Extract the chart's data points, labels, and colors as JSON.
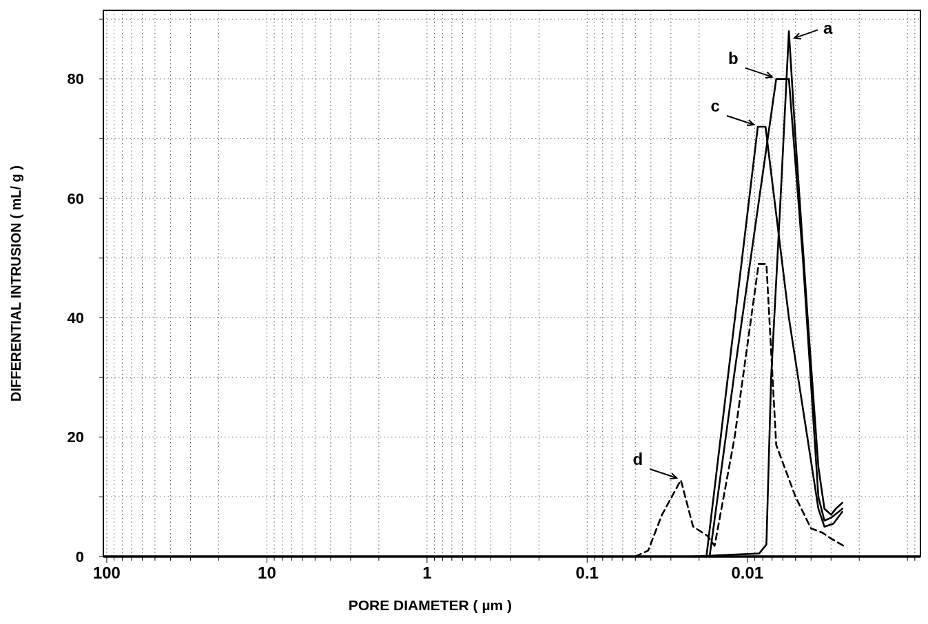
{
  "chart_data": {
    "type": "line",
    "xlabel": "PORE DIAMETER ( µm )",
    "ylabel": "DIFFERENTIAL INTRUSION ( mL/ g )",
    "log": "x",
    "grid": true,
    "marker": "none",
    "xlim": [
      105,
      0.00083
    ],
    "xticks": [
      100,
      {
        "value": 90,
        "label": null
      },
      {
        "value": 80,
        "label": null
      },
      {
        "value": 70,
        "label": null
      },
      {
        "value": 60,
        "label": null
      },
      {
        "value": 50,
        "label": null
      },
      {
        "value": 40,
        "label": null
      },
      {
        "value": 30,
        "label": null
      },
      {
        "value": 20,
        "label": null
      },
      10,
      {
        "value": 9,
        "label": null
      },
      {
        "value": 8,
        "label": null
      },
      {
        "value": 7,
        "label": null
      },
      {
        "value": 6,
        "label": null
      },
      {
        "value": 5,
        "label": null
      },
      {
        "value": 4,
        "label": null
      },
      {
        "value": 3,
        "label": null
      },
      {
        "value": 2,
        "label": null
      },
      1,
      {
        "value": 0.9,
        "label": null
      },
      {
        "value": 0.8,
        "label": null
      },
      {
        "value": 0.7,
        "label": null
      },
      {
        "value": 0.6,
        "label": null
      },
      {
        "value": 0.5,
        "label": null
      },
      {
        "value": 0.4,
        "label": null
      },
      {
        "value": 0.3,
        "label": null
      },
      {
        "value": 0.2,
        "label": null
      },
      0.1,
      {
        "value": 0.09,
        "label": null
      },
      {
        "value": 0.08,
        "label": null
      },
      {
        "value": 0.07,
        "label": null
      },
      {
        "value": 0.06,
        "label": null
      },
      {
        "value": 0.05,
        "label": null
      },
      {
        "value": 0.04,
        "label": null
      },
      {
        "value": 0.03,
        "label": null
      },
      {
        "value": 0.02,
        "label": null
      },
      0.01,
      {
        "value": 0.009,
        "label": null
      },
      {
        "value": 0.008,
        "label": null
      },
      {
        "value": 0.007,
        "label": null
      },
      {
        "value": 0.006,
        "label": null
      },
      {
        "value": 0.005,
        "label": null
      },
      {
        "value": 0.004,
        "label": null
      },
      {
        "value": 0.003,
        "label": null
      },
      {
        "value": 0.002,
        "label": null
      },
      {
        "value": 0.001,
        "label": null
      },
      {
        "value": 0.0009,
        "label": null
      }
    ],
    "ylim": [
      0,
      91.5
    ],
    "yticks": [
      0,
      {
        "value": 10,
        "label": null
      },
      20,
      {
        "value": 30,
        "label": null
      },
      40,
      {
        "value": 50,
        "label": null
      },
      60,
      {
        "value": 70,
        "label": null
      },
      80,
      {
        "value": 90,
        "label": null
      }
    ],
    "series": [
      {
        "color": "#000000",
        "x": [
          0.0218,
          0.00844,
          0.0076,
          0.0071,
          0.0062,
          0.0055,
          0.005,
          0.0042,
          0.0036,
          0.0033,
          0.003,
          0.0028,
          0.00255
        ],
        "values": [
          0,
          0.5,
          2,
          30,
          60,
          88,
          70,
          40,
          15,
          8,
          7,
          8,
          9
        ]
      },
      {
        "color": "#000000",
        "x": [
          0.0172,
          0.012,
          0.0066,
          0.0055,
          0.0045,
          0.0036,
          0.0033,
          0.003,
          0.00255
        ],
        "values": [
          0,
          31,
          80,
          80,
          50,
          10,
          6,
          6.5,
          8
        ]
      },
      {
        "color": "#000000",
        "x": [
          0.018,
          0.0086,
          0.0077,
          0.0055,
          0.0036,
          0.0033,
          0.0029,
          0.00255
        ],
        "values": [
          0,
          72,
          72,
          40,
          8,
          5,
          5.5,
          7.5
        ]
      },
      {
        "color": "#000000",
        "line_style": "dashed",
        "x": [
          0.05,
          0.0416,
          0.0341,
          0.026,
          0.0218,
          0.0178,
          0.016,
          0.012,
          0.0085,
          0.0076,
          0.0066,
          0.005,
          0.004,
          0.0034,
          0.003,
          0.0024
        ],
        "values": [
          0,
          1,
          7,
          12.8,
          5,
          3.5,
          1.8,
          20,
          49,
          49,
          18.7,
          10,
          4.7,
          4,
          3,
          1.5
        ]
      }
    ],
    "annotations": [
      {
        "text": "a",
        "x": 0.0055,
        "y": 88
      },
      {
        "text": "b",
        "x": 0.0066,
        "y": 80
      },
      {
        "text": "c",
        "x": 0.0086,
        "y": 72
      },
      {
        "text": "d",
        "x": 0.026,
        "y": 12.8
      }
    ]
  }
}
